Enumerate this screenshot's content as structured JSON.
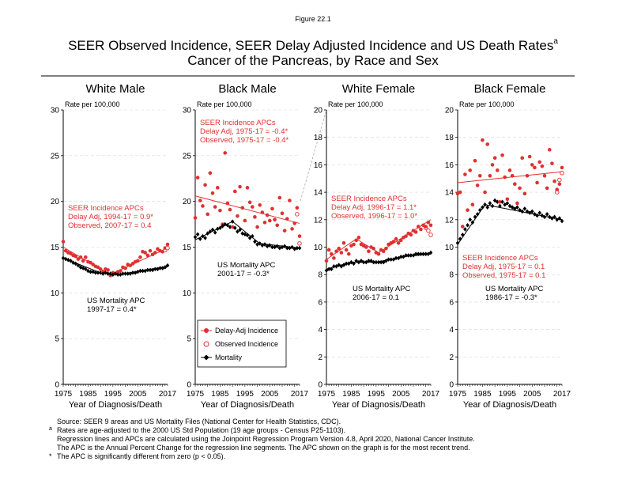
{
  "figure_label": "Figure 22.1",
  "title_line1": "SEER Observed Incidence, SEER Delay Adjusted Incidence and US Death Rates",
  "title_superscript": "a",
  "title_line2": "Cancer of the Pancreas, by Race and Sex",
  "colors": {
    "incidence": "#e03030",
    "mortality": "#000000",
    "grid": "#d8d8d8"
  },
  "legend": {
    "items": [
      "Delay-Adj Incidence",
      "Observed Incidence",
      "Mortality"
    ]
  },
  "footnotes": {
    "source": "Source: SEER 9 areas and US Mortality Files (National Center for Health Statistics, CDC).",
    "a_marker": "a",
    "a_text": "Rates are age-adjusted to the 2000 US Std Population (19 age groups - Census P25-1103).",
    "regression": "Regression lines and APCs are calculated using the Joinpoint Regression Program Version 4.8, April 2020, National Cancer Institute.",
    "apc_def": "The APC is the Annual Percent Change for the regression line segments. The APC shown on the graph is for the most recent trend.",
    "star_marker": "*",
    "star_text": "The APC is significantly different from zero (p < 0.05)."
  },
  "chart_data": [
    {
      "type": "scatter",
      "panel_title": "White Male",
      "ylabel": "Rate per 100,000",
      "xlabel": "Year of Diagnosis/Death",
      "xlim": [
        1975,
        2017
      ],
      "ylim": [
        0,
        30
      ],
      "yticks": [
        0,
        5,
        10,
        15,
        20,
        25,
        30
      ],
      "xtick_labels": [
        "1975",
        "1985",
        "1995",
        "2005",
        "2017"
      ],
      "grid": true,
      "incidence_label": [
        "SEER Incidence APCs",
        "Delay Adj, 1994-17 = 0.9*",
        "Observed, 2007-17 = 0.4"
      ],
      "mortality_label": [
        "US Mortality APC",
        "1997-17 = 0.4*"
      ],
      "x": [
        1975,
        1976,
        1977,
        1978,
        1979,
        1980,
        1981,
        1982,
        1983,
        1984,
        1985,
        1986,
        1987,
        1988,
        1989,
        1990,
        1991,
        1992,
        1993,
        1994,
        1995,
        1996,
        1997,
        1998,
        1999,
        2000,
        2001,
        2002,
        2003,
        2004,
        2005,
        2006,
        2007,
        2008,
        2009,
        2010,
        2011,
        2012,
        2013,
        2014,
        2015,
        2016,
        2017
      ],
      "series": [
        {
          "name": "Delay-Adj Incidence",
          "values": [
            15.6,
            14.6,
            14.4,
            14.3,
            14.1,
            14.0,
            13.7,
            13.9,
            13.5,
            13.9,
            13.4,
            13.3,
            13.1,
            12.9,
            12.8,
            12.6,
            12.3,
            12.6,
            12.5,
            11.9,
            12.2,
            12.1,
            12.3,
            12.4,
            12.8,
            12.7,
            13.1,
            13.0,
            13.2,
            13.4,
            13.5,
            13.9,
            14.5,
            14.4,
            14.1,
            14.6,
            14.2,
            14.4,
            14.8,
            14.6,
            14.5,
            14.9,
            15.3
          ]
        },
        {
          "name": "Observed Incidence",
          "values": [
            15.6,
            14.6,
            14.4,
            14.3,
            14.1,
            14.0,
            13.7,
            13.9,
            13.5,
            13.9,
            13.4,
            13.3,
            13.1,
            12.9,
            12.8,
            12.6,
            12.3,
            12.6,
            12.5,
            11.9,
            12.2,
            12.1,
            12.3,
            12.4,
            12.8,
            12.7,
            13.1,
            13.0,
            13.2,
            13.4,
            13.5,
            13.9,
            14.5,
            14.4,
            14.1,
            14.6,
            14.2,
            14.4,
            14.8,
            14.6,
            14.5,
            14.7,
            14.9
          ]
        },
        {
          "name": "Mortality",
          "values": [
            13.8,
            13.7,
            13.6,
            13.5,
            13.3,
            13.2,
            13.0,
            12.8,
            12.7,
            12.6,
            12.4,
            12.3,
            12.3,
            12.2,
            12.2,
            12.2,
            12.1,
            12.2,
            12.1,
            12.1,
            12.0,
            12.1,
            12.0,
            12.0,
            12.1,
            12.1,
            12.1,
            12.1,
            12.2,
            12.2,
            12.3,
            12.4,
            12.4,
            12.4,
            12.5,
            12.5,
            12.5,
            12.6,
            12.6,
            12.7,
            12.7,
            12.8,
            13.0
          ]
        }
      ],
      "incidence_trend": {
        "x": [
          1975,
          1994,
          2017
        ],
        "y": [
          15.0,
          12.0,
          14.9
        ]
      },
      "mortality_trend": {
        "x": [
          1975,
          1990,
          1997,
          2017
        ],
        "y": [
          13.8,
          12.2,
          12.0,
          12.9
        ]
      }
    },
    {
      "type": "scatter",
      "panel_title": "Black Male",
      "ylabel": "Rate per 100,000",
      "xlabel": "Year of Diagnosis/Death",
      "xlim": [
        1975,
        2017
      ],
      "ylim": [
        0,
        30
      ],
      "yticks": [
        0,
        5,
        10,
        15,
        20,
        25,
        30
      ],
      "xtick_labels": [
        "1975",
        "1985",
        "1995",
        "2005",
        "2017"
      ],
      "grid": true,
      "incidence_label": [
        "SEER Incidence APCs",
        "Delay Adj, 1975-17 = -0.4*",
        "Observed, 1975-17 = -0.4*"
      ],
      "mortality_label": [
        "US Mortality APC",
        "2001-17 = -0.3*"
      ],
      "x": [
        1975,
        1976,
        1977,
        1978,
        1979,
        1980,
        1981,
        1982,
        1983,
        1984,
        1985,
        1986,
        1987,
        1988,
        1989,
        1990,
        1991,
        1992,
        1993,
        1994,
        1995,
        1996,
        1997,
        1998,
        1999,
        2000,
        2001,
        2002,
        2003,
        2004,
        2005,
        2006,
        2007,
        2008,
        2009,
        2010,
        2011,
        2012,
        2013,
        2014,
        2015,
        2016,
        2017
      ],
      "series": [
        {
          "name": "Delay-Adj Incidence",
          "values": [
            18.2,
            22.6,
            20.1,
            19.5,
            21.8,
            18.6,
            23.1,
            20.9,
            19.4,
            21.5,
            19.0,
            17.5,
            25.3,
            19.8,
            19.1,
            17.2,
            21.1,
            18.4,
            21.6,
            19.3,
            17.9,
            21.5,
            19.9,
            19.4,
            18.3,
            17.2,
            19.6,
            18.8,
            17.7,
            18.5,
            17.9,
            19.2,
            18.0,
            17.4,
            20.4,
            18.7,
            16.8,
            18.1,
            20.1,
            17.0,
            17.6,
            19.3,
            16.2
          ]
        },
        {
          "name": "Observed Incidence",
          "values": [
            18.2,
            22.6,
            20.1,
            19.5,
            21.8,
            18.6,
            23.1,
            20.9,
            19.4,
            21.5,
            19.0,
            17.5,
            25.3,
            19.8,
            19.1,
            17.2,
            21.1,
            18.4,
            21.6,
            19.3,
            17.9,
            21.5,
            19.9,
            19.4,
            18.3,
            17.2,
            19.6,
            18.8,
            17.7,
            18.5,
            17.9,
            19.2,
            18.0,
            17.4,
            20.4,
            18.7,
            16.8,
            18.1,
            20.1,
            17.0,
            17.6,
            18.6,
            15.4
          ]
        },
        {
          "name": "Mortality",
          "values": [
            16.1,
            16.4,
            15.9,
            16.2,
            16.0,
            16.5,
            16.7,
            16.9,
            16.6,
            17.0,
            17.1,
            17.3,
            17.5,
            17.4,
            17.2,
            17.8,
            17.1,
            16.7,
            16.9,
            16.5,
            16.4,
            16.3,
            16.0,
            16.2,
            15.6,
            15.3,
            15.4,
            15.2,
            15.3,
            15.1,
            15.2,
            15.0,
            15.0,
            15.1,
            14.9,
            15.0,
            15.1,
            14.9,
            14.9,
            15.0,
            14.8,
            14.9,
            14.9
          ]
        }
      ],
      "incidence_trend": {
        "x": [
          1975,
          2017
        ],
        "y": [
          20.6,
          17.6
        ]
      },
      "mortality_trend": {
        "x": [
          1975,
          1990,
          2001,
          2017
        ],
        "y": [
          15.8,
          17.8,
          15.4,
          14.9
        ]
      }
    },
    {
      "type": "scatter",
      "panel_title": "White Female",
      "ylabel": "Rate per 100,000",
      "xlabel": "Year of Diagnosis/Death",
      "xlim": [
        1975,
        2017
      ],
      "ylim": [
        0,
        20
      ],
      "yticks": [
        0,
        2,
        4,
        6,
        8,
        10,
        12,
        14,
        16,
        18,
        20
      ],
      "xtick_labels": [
        "1975",
        "1985",
        "1995",
        "2005",
        "2017"
      ],
      "grid": true,
      "incidence_label": [
        "SEER Incidence APCs",
        "Delay Adj, 1996-17 = 1.1*",
        "Observed, 1996-17 = 1.0*"
      ],
      "mortality_label": [
        "US Mortality APC",
        "2006-17 = 0.1"
      ],
      "x": [
        1975,
        1976,
        1977,
        1978,
        1979,
        1980,
        1981,
        1982,
        1983,
        1984,
        1985,
        1986,
        1987,
        1988,
        1989,
        1990,
        1991,
        1992,
        1993,
        1994,
        1995,
        1996,
        1997,
        1998,
        1999,
        2000,
        2001,
        2002,
        2003,
        2004,
        2005,
        2006,
        2007,
        2008,
        2009,
        2010,
        2011,
        2012,
        2013,
        2014,
        2015,
        2016,
        2017
      ],
      "series": [
        {
          "name": "Delay-Adj Incidence",
          "values": [
            9.0,
            9.8,
            9.5,
            9.2,
            9.7,
            9.9,
            9.6,
            10.3,
            9.8,
            9.5,
            10.1,
            10.2,
            10.5,
            10.7,
            10.2,
            10.1,
            10.0,
            9.7,
            10.0,
            9.9,
            9.6,
            9.5,
            9.8,
            9.7,
            9.9,
            10.2,
            10.3,
            10.4,
            10.6,
            10.3,
            10.5,
            10.7,
            10.8,
            11.0,
            10.9,
            11.2,
            11.1,
            11.5,
            11.3,
            11.6,
            11.5,
            11.8,
            11.6
          ]
        },
        {
          "name": "Observed Incidence",
          "values": [
            9.0,
            9.8,
            9.5,
            9.2,
            9.7,
            9.9,
            9.6,
            10.3,
            9.8,
            9.5,
            10.1,
            10.2,
            10.5,
            10.7,
            10.2,
            10.1,
            10.0,
            9.7,
            10.0,
            9.9,
            9.6,
            9.5,
            9.8,
            9.7,
            9.9,
            10.2,
            10.3,
            10.4,
            10.6,
            10.3,
            10.5,
            10.7,
            10.8,
            11.0,
            10.9,
            11.2,
            11.1,
            11.5,
            11.3,
            11.6,
            11.4,
            11.2,
            10.9
          ]
        },
        {
          "name": "Mortality",
          "values": [
            8.3,
            8.4,
            8.4,
            8.6,
            8.6,
            8.7,
            8.6,
            8.7,
            8.8,
            8.8,
            8.9,
            8.8,
            9.0,
            8.9,
            9.0,
            8.9,
            8.9,
            9.0,
            9.0,
            8.9,
            8.9,
            8.9,
            8.9,
            8.9,
            9.0,
            9.1,
            9.1,
            9.1,
            9.2,
            9.2,
            9.3,
            9.3,
            9.4,
            9.4,
            9.4,
            9.4,
            9.5,
            9.5,
            9.5,
            9.5,
            9.5,
            9.5,
            9.6
          ]
        }
      ],
      "incidence_trend": {
        "x": [
          1975,
          1987,
          1996,
          2017
        ],
        "y": [
          9.1,
          10.6,
          9.6,
          12.0
        ]
      },
      "mortality_trend": {
        "x": [
          1975,
          1985,
          1995,
          2006,
          2017
        ],
        "y": [
          8.4,
          8.9,
          8.9,
          9.3,
          9.5
        ]
      }
    },
    {
      "type": "scatter",
      "panel_title": "Black Female",
      "ylabel": "Rate per 100,000",
      "xlabel": "Year of Diagnosis/Death",
      "xlim": [
        1975,
        2017
      ],
      "ylim": [
        0,
        20
      ],
      "yticks": [
        0,
        2,
        4,
        6,
        8,
        10,
        12,
        14,
        16,
        18,
        20
      ],
      "xtick_labels": [
        "1975",
        "1985",
        "1995",
        "2005",
        "2017"
      ],
      "grid": true,
      "incidence_label": [
        "SEER Incidence APCs",
        "Delay Adj, 1975-17 = 0.1",
        "Observed, 1975-17 = 0.1"
      ],
      "mortality_label": [
        "US Mortality APC",
        "1986-17 = -0.3*"
      ],
      "x": [
        1975,
        1976,
        1977,
        1978,
        1979,
        1980,
        1981,
        1982,
        1983,
        1984,
        1985,
        1986,
        1987,
        1988,
        1989,
        1990,
        1991,
        1992,
        1993,
        1994,
        1995,
        1996,
        1997,
        1998,
        1999,
        2000,
        2001,
        2002,
        2003,
        2004,
        2005,
        2006,
        2007,
        2008,
        2009,
        2010,
        2011,
        2012,
        2013,
        2014,
        2015,
        2016,
        2017
      ],
      "series": [
        {
          "name": "Delay-Adj Incidence",
          "values": [
            13.9,
            14.0,
            11.5,
            15.3,
            12.7,
            15.6,
            13.1,
            16.3,
            14.5,
            15.2,
            17.8,
            14.0,
            17.5,
            15.2,
            16.0,
            16.5,
            15.6,
            13.3,
            16.7,
            15.1,
            13.5,
            15.6,
            15.2,
            14.6,
            13.2,
            14.3,
            16.5,
            13.9,
            15.2,
            16.6,
            16.0,
            15.8,
            14.7,
            16.2,
            15.9,
            15.2,
            14.3,
            17.1,
            16.1,
            14.8,
            14.2,
            14.6,
            15.8
          ]
        },
        {
          "name": "Observed Incidence",
          "values": [
            13.9,
            14.0,
            11.5,
            15.3,
            12.7,
            15.6,
            13.1,
            16.3,
            14.5,
            15.2,
            17.8,
            14.0,
            17.5,
            15.2,
            16.0,
            16.5,
            15.6,
            13.3,
            16.7,
            15.1,
            13.5,
            15.6,
            15.2,
            14.6,
            13.2,
            14.3,
            16.5,
            13.9,
            15.2,
            16.6,
            16.0,
            15.8,
            14.7,
            16.2,
            15.9,
            15.2,
            14.3,
            17.1,
            16.1,
            14.8,
            14.0,
            14.9,
            15.4
          ]
        },
        {
          "name": "Mortality",
          "values": [
            10.3,
            10.6,
            10.9,
            11.3,
            11.6,
            12.0,
            11.8,
            12.2,
            12.4,
            12.7,
            12.9,
            13.1,
            12.9,
            13.2,
            13.0,
            13.4,
            13.3,
            13.0,
            13.3,
            13.1,
            13.2,
            13.0,
            12.9,
            12.8,
            12.9,
            12.7,
            12.6,
            12.8,
            12.6,
            12.5,
            12.6,
            12.4,
            12.3,
            12.5,
            12.3,
            12.2,
            12.4,
            12.2,
            12.1,
            12.2,
            12.0,
            12.1,
            11.9
          ]
        }
      ],
      "incidence_trend": {
        "x": [
          1975,
          2017
        ],
        "y": [
          14.7,
          15.5
        ]
      },
      "mortality_trend": {
        "x": [
          1975,
          1986,
          2017
        ],
        "y": [
          10.2,
          13.1,
          12.0
        ]
      }
    }
  ]
}
